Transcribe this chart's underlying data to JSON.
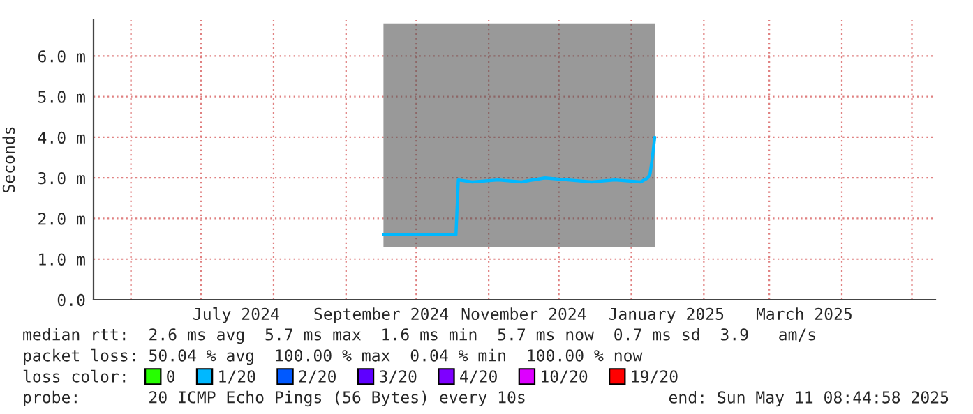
{
  "chart_data": {
    "type": "line",
    "ylabel": "Seconds",
    "xlim": [
      "2024-05-16",
      "2025-05-11"
    ],
    "xticks": [
      {
        "value": "2024-06-01",
        "label": null
      },
      {
        "value": "2024-07-01",
        "label": null
      },
      {
        "value": "2024-07-16",
        "label": "July 2024"
      },
      {
        "value": "2024-08-01",
        "label": null
      },
      {
        "value": "2024-09-01",
        "label": null
      },
      {
        "value": "2024-09-16",
        "label": "September 2024"
      },
      {
        "value": "2024-10-01",
        "label": null
      },
      {
        "value": "2024-11-01",
        "label": null
      },
      {
        "value": "2024-11-16",
        "label": "November 2024"
      },
      {
        "value": "2024-12-01",
        "label": null
      },
      {
        "value": "2025-01-01",
        "label": null
      },
      {
        "value": "2025-01-16",
        "label": "January 2025"
      },
      {
        "value": "2025-02-01",
        "label": null
      },
      {
        "value": "2025-03-01",
        "label": null
      },
      {
        "value": "2025-03-16",
        "label": "March 2025"
      },
      {
        "value": "2025-04-01",
        "label": null
      },
      {
        "value": "2025-05-01",
        "label": null
      }
    ],
    "ylim": [
      0,
      6.9
    ],
    "yticks": [
      {
        "value": 0,
        "label": "0.0"
      },
      {
        "value": 1,
        "label": "1.0 m"
      },
      {
        "value": 2,
        "label": "2.0 m"
      },
      {
        "value": 3,
        "label": "3.0 m"
      },
      {
        "value": 4,
        "label": "4.0 m"
      },
      {
        "value": 5,
        "label": "5.0 m"
      },
      {
        "value": 6,
        "label": "6.0 m"
      }
    ],
    "grid": true,
    "legend": "bottom",
    "legend_title": "loss color:",
    "series": [
      {
        "name": "0",
        "color": "#26ff00"
      },
      {
        "name": "1/20",
        "color": "#00b8ff",
        "x": [
          "2024-09-17",
          "2024-10-18",
          "2024-10-19",
          "2024-10-25",
          "2024-11-05",
          "2024-11-15",
          "2024-11-25",
          "2024-12-05",
          "2024-12-15",
          "2024-12-25",
          "2025-01-05",
          "2025-01-08",
          "2025-01-09",
          "2025-01-10",
          "2025-01-11"
        ],
        "values": [
          1.6,
          1.6,
          2.95,
          2.9,
          2.95,
          2.9,
          3.0,
          2.95,
          2.9,
          2.95,
          2.9,
          3.0,
          3.1,
          3.5,
          4.0
        ],
        "lower": [
          1.3,
          1.3,
          1.3,
          1.3,
          1.3,
          1.3,
          1.3,
          1.3,
          1.3,
          1.3,
          1.3,
          1.3,
          1.3,
          1.3,
          1.3
        ],
        "upper": [
          6.8,
          6.8,
          6.8,
          6.8,
          6.8,
          6.8,
          6.8,
          6.8,
          6.8,
          6.8,
          6.8,
          6.8,
          6.8,
          6.8,
          6.8
        ]
      },
      {
        "name": "2/20",
        "color": "#0059ff"
      },
      {
        "name": "3/20",
        "color": "#5e00ff"
      },
      {
        "name": "4/20",
        "color": "#7e00ff"
      },
      {
        "name": "10/20",
        "color": "#dd00ff"
      },
      {
        "name": "19/20",
        "color": "#ff0000"
      }
    ],
    "annotations": [
      "median rtt:  2.6 ms avg  5.7 ms max  1.6 ms min  5.7 ms now  0.7 ms sd  3.9   am/s",
      "packet loss: 50.04 % avg  100.00 % max  0.04 % min  100.00 % now",
      "probe:       20 ICMP Echo Pings (56 Bytes) every 10s",
      "end: Sun May 11 08:44:58 2025"
    ]
  }
}
